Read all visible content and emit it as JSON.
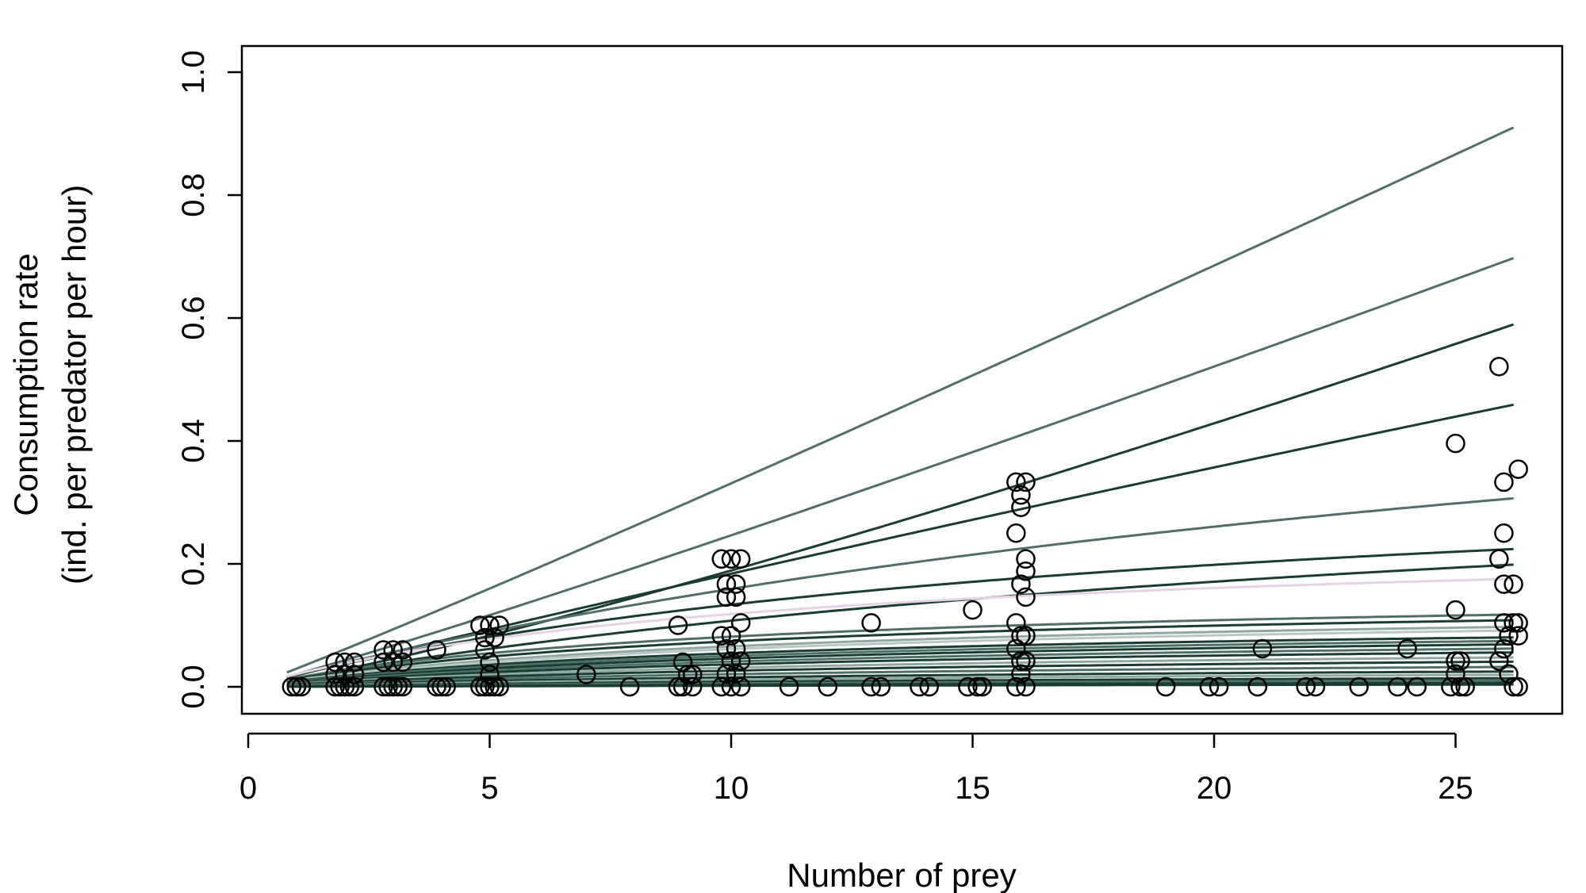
{
  "chart_data": {
    "type": "scatter",
    "title": "",
    "xlabel": "Number of prey",
    "ylabel_line1": "Consumption rate",
    "ylabel_line2": "(ind. per predator per hour)",
    "xlim": [
      0,
      27
    ],
    "ylim": [
      0,
      1.0
    ],
    "xticks": [
      0,
      5,
      10,
      15,
      20,
      25
    ],
    "yticks": [
      0.0,
      0.2,
      0.4,
      0.6,
      0.8,
      1.0
    ],
    "xtick_labels": [
      "0",
      "5",
      "10",
      "15",
      "20",
      "25"
    ],
    "ytick_labels": [
      "0.0",
      "0.2",
      "0.4",
      "0.6",
      "0.8",
      "1.0"
    ],
    "grid": false,
    "points": [
      [
        1,
        0
      ],
      [
        0.9,
        0
      ],
      [
        1.1,
        0
      ],
      [
        1.8,
        0.04
      ],
      [
        2,
        0.04
      ],
      [
        2.2,
        0.04
      ],
      [
        1.8,
        0.02
      ],
      [
        2,
        0.02
      ],
      [
        2.2,
        0.02
      ],
      [
        1.8,
        0
      ],
      [
        2,
        0
      ],
      [
        2.2,
        0
      ],
      [
        1.9,
        0
      ],
      [
        2.1,
        0
      ],
      [
        2.8,
        0.06
      ],
      [
        3,
        0.06
      ],
      [
        3.2,
        0.06
      ],
      [
        2.8,
        0.04
      ],
      [
        3,
        0.04
      ],
      [
        3.2,
        0.04
      ],
      [
        2.8,
        0
      ],
      [
        3,
        0
      ],
      [
        3.2,
        0
      ],
      [
        2.9,
        0
      ],
      [
        3.1,
        0
      ],
      [
        3.9,
        0.06
      ],
      [
        4,
        0
      ],
      [
        4.1,
        0
      ],
      [
        3.9,
        0
      ],
      [
        4.8,
        0.1
      ],
      [
        5,
        0.1
      ],
      [
        5.2,
        0.1
      ],
      [
        4.9,
        0.08
      ],
      [
        5.1,
        0.08
      ],
      [
        4.9,
        0.06
      ],
      [
        5,
        0.04
      ],
      [
        5,
        0.02
      ],
      [
        4.8,
        0
      ],
      [
        5,
        0
      ],
      [
        5.2,
        0
      ],
      [
        4.9,
        0
      ],
      [
        5.1,
        0
      ],
      [
        7,
        0.02
      ],
      [
        7.9,
        0
      ],
      [
        8.9,
        0.1
      ],
      [
        9,
        0.04
      ],
      [
        9.1,
        0.02
      ],
      [
        9.2,
        0.02
      ],
      [
        8.9,
        0
      ],
      [
        9,
        0
      ],
      [
        9.2,
        0
      ],
      [
        9.8,
        0.208
      ],
      [
        10,
        0.208
      ],
      [
        10.2,
        0.208
      ],
      [
        9.9,
        0.167
      ],
      [
        10.1,
        0.167
      ],
      [
        9.9,
        0.146
      ],
      [
        10.1,
        0.146
      ],
      [
        9.8,
        0.083
      ],
      [
        10,
        0.083
      ],
      [
        10.2,
        0.104
      ],
      [
        9.9,
        0.062
      ],
      [
        10.1,
        0.062
      ],
      [
        10,
        0.042
      ],
      [
        10.2,
        0.042
      ],
      [
        9.9,
        0.021
      ],
      [
        10.1,
        0.021
      ],
      [
        9.8,
        0
      ],
      [
        10,
        0
      ],
      [
        10.2,
        0
      ],
      [
        11.2,
        0
      ],
      [
        12,
        0
      ],
      [
        12.9,
        0.104
      ],
      [
        12.9,
        0
      ],
      [
        13.1,
        0
      ],
      [
        13.9,
        0
      ],
      [
        14.1,
        0
      ],
      [
        15,
        0.125
      ],
      [
        14.9,
        0
      ],
      [
        15.1,
        0
      ],
      [
        15.2,
        0
      ],
      [
        15.9,
        0.333
      ],
      [
        16.1,
        0.333
      ],
      [
        16,
        0.312
      ],
      [
        16,
        0.292
      ],
      [
        15.9,
        0.25
      ],
      [
        16.1,
        0.208
      ],
      [
        16.1,
        0.188
      ],
      [
        16,
        0.167
      ],
      [
        16.1,
        0.146
      ],
      [
        15.9,
        0.104
      ],
      [
        16,
        0.083
      ],
      [
        16.1,
        0.083
      ],
      [
        15.9,
        0.062
      ],
      [
        16,
        0.042
      ],
      [
        16.1,
        0.042
      ],
      [
        16,
        0.021
      ],
      [
        16.1,
        0
      ],
      [
        15.9,
        0
      ],
      [
        19,
        0
      ],
      [
        19.9,
        0
      ],
      [
        20.1,
        0
      ],
      [
        20.9,
        0
      ],
      [
        21,
        0.062
      ],
      [
        21.9,
        0
      ],
      [
        22.1,
        0
      ],
      [
        23,
        0
      ],
      [
        23.8,
        0
      ],
      [
        24,
        0.062
      ],
      [
        24.2,
        0
      ],
      [
        25,
        0.396
      ],
      [
        25,
        0.125
      ],
      [
        25,
        0.042
      ],
      [
        25.1,
        0.042
      ],
      [
        25,
        0.021
      ],
      [
        24.9,
        0
      ],
      [
        25.1,
        0
      ],
      [
        25.2,
        0
      ],
      [
        25.9,
        0.521
      ],
      [
        26.3,
        0.354
      ],
      [
        26,
        0.333
      ],
      [
        26,
        0.25
      ],
      [
        25.9,
        0.208
      ],
      [
        26,
        0.167
      ],
      [
        26.2,
        0.167
      ],
      [
        26,
        0.104
      ],
      [
        26.2,
        0.104
      ],
      [
        26.3,
        0.104
      ],
      [
        26.1,
        0.083
      ],
      [
        26.3,
        0.083
      ],
      [
        26,
        0.062
      ],
      [
        25.9,
        0.042
      ],
      [
        26.1,
        0.021
      ],
      [
        26.3,
        0
      ],
      [
        26.2,
        0
      ]
    ],
    "series": [
      {
        "a": 0.0295,
        "h": 0.0,
        "q": 0.05,
        "color": "#4f6e6c"
      },
      {
        "a": 0.0205,
        "h": 0.0,
        "q": 0.08,
        "color": "#4f6e6c"
      },
      {
        "a": 0.019,
        "h": 0.17,
        "q": 0.0,
        "color": "#1a3d32"
      },
      {
        "a": 0.0125,
        "h": 0.0,
        "q": 0.18,
        "color": "#1a3d32"
      },
      {
        "a": 0.0205,
        "h": 1.4,
        "q": 0.0,
        "color": "#4f6e6c"
      },
      {
        "a": 0.0205,
        "h": 2.6,
        "q": 0.0,
        "color": "#1a3d32"
      },
      {
        "a": 0.0145,
        "h": 2.4,
        "q": 0.0,
        "color": "#1a3d32"
      },
      {
        "a": 0.0225,
        "h": 4.0,
        "q": 0.0,
        "color": "#e6d2e4"
      },
      {
        "a": 0.0165,
        "h": 6.2,
        "q": 0.0,
        "color": "#4f6e6c"
      },
      {
        "a": 0.0145,
        "h": 6.6,
        "q": 0.0,
        "color": "#1a3d32"
      },
      {
        "a": 0.0125,
        "h": 7.2,
        "q": 0.0,
        "color": "#8fa8a4"
      },
      {
        "a": 0.0115,
        "h": 7.6,
        "q": 0.0,
        "color": "#b8c8c4"
      },
      {
        "a": 0.0105,
        "h": 8.8,
        "q": 0.0,
        "color": "#1a3d32"
      },
      {
        "a": 0.0095,
        "h": 9.4,
        "q": 0.0,
        "color": "#4f6e6c"
      },
      {
        "a": 0.0085,
        "h": 10.0,
        "q": 0.0,
        "color": "#1a3d32"
      },
      {
        "a": 0.0075,
        "h": 11.0,
        "q": 0.0,
        "color": "#4f6e6c"
      },
      {
        "a": 0.0065,
        "h": 12.0,
        "q": 0.0,
        "color": "#1a3d32"
      },
      {
        "a": 0.0055,
        "h": 14.0,
        "q": 0.0,
        "color": "#8fa8a4"
      },
      {
        "a": 0.0045,
        "h": 16.0,
        "q": 0.0,
        "color": "#1a3d32"
      },
      {
        "a": 0.0035,
        "h": 20.0,
        "q": 0.0,
        "color": "#4f6e6c"
      },
      {
        "a": 0.0025,
        "h": 25.0,
        "q": 0.0,
        "color": "#1a3d32"
      },
      {
        "a": 0.0018,
        "h": 30.0,
        "q": 0.0,
        "color": "#8fa8a4"
      },
      {
        "a": 0.0012,
        "h": 40.0,
        "q": 0.0,
        "color": "#1a3d32"
      },
      {
        "a": 0.0008,
        "h": 50.0,
        "q": 0.0,
        "color": "#4f6e6c"
      },
      {
        "a": 0.0004,
        "h": 60.0,
        "q": 0.0,
        "color": "#1a3d32"
      },
      {
        "a": 0.0002,
        "h": 80.0,
        "q": 0.0,
        "color": "#1a3d32"
      }
    ]
  }
}
